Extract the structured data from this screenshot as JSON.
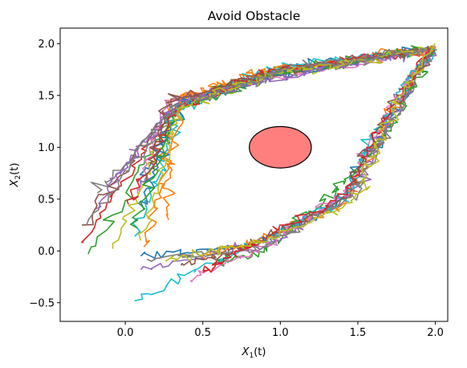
{
  "chart_data": {
    "type": "line",
    "title": "Avoid Obstacle",
    "xlabel_base": "X",
    "xlabel_sub": "1",
    "xlabel_suffix": "(t)",
    "ylabel_base": "X",
    "ylabel_sub": "2",
    "ylabel_suffix": "(t)",
    "xlim": [
      -0.42,
      2.08
    ],
    "ylim": [
      -0.68,
      2.15
    ],
    "xticks": [
      0.0,
      0.5,
      1.0,
      1.5,
      2.0
    ],
    "xtick_labels": [
      "0.0",
      "0.5",
      "1.0",
      "1.5",
      "2.0"
    ],
    "yticks": [
      -0.5,
      0.0,
      0.5,
      1.0,
      1.5,
      2.0
    ],
    "ytick_labels": [
      "−0.5",
      "0.0",
      "0.5",
      "1.0",
      "1.5",
      "2.0"
    ],
    "grid": false,
    "legend": "none",
    "obstacle": {
      "center": [
        1.0,
        1.0
      ],
      "radius_x": 0.2,
      "radius_y": 0.2,
      "fill": "#ff7f7f",
      "edge": "#000000"
    },
    "upper_targets": [
      1.98,
      1.95
    ],
    "series": [
      {
        "color": "#1f77b4",
        "path": "upper",
        "start": [
          0.1,
          0.62
        ]
      },
      {
        "color": "#ff7f0e",
        "path": "upper",
        "start": [
          0.28,
          0.3
        ]
      },
      {
        "color": "#2ca02c",
        "path": "upper",
        "start": [
          -0.24,
          -0.03
        ]
      },
      {
        "color": "#d62728",
        "path": "upper",
        "start": [
          -0.27,
          0.08
        ]
      },
      {
        "color": "#9467bd",
        "path": "upper",
        "start": [
          -0.2,
          0.4
        ]
      },
      {
        "color": "#8c564b",
        "path": "upper",
        "start": [
          -0.28,
          0.25
        ]
      },
      {
        "color": "#e377c2",
        "path": "upper",
        "start": [
          0.08,
          0.55
        ]
      },
      {
        "color": "#7f7f7f",
        "path": "upper",
        "start": [
          -0.25,
          0.25
        ]
      },
      {
        "color": "#bcbd22",
        "path": "upper",
        "start": [
          -0.08,
          0.02
        ]
      },
      {
        "color": "#17becf",
        "path": "upper",
        "start": [
          0.06,
          0.14
        ]
      },
      {
        "color": "#1f77b4",
        "path": "upper",
        "start": [
          0.12,
          0.4
        ]
      },
      {
        "color": "#ff7f0e",
        "path": "upper",
        "start": [
          0.12,
          0.04
        ]
      },
      {
        "color": "#2ca02c",
        "path": "upper",
        "start": [
          0.08,
          0.22
        ]
      },
      {
        "color": "#d62728",
        "path": "upper",
        "start": [
          0.02,
          0.45
        ]
      },
      {
        "color": "#9467bd",
        "path": "upper",
        "start": [
          -0.12,
          0.62
        ]
      },
      {
        "color": "#8c564b",
        "path": "upper",
        "start": [
          0.14,
          0.68
        ]
      },
      {
        "color": "#bcbd22",
        "path": "upper",
        "start": [
          0.1,
          0.1
        ]
      },
      {
        "color": "#7f7f7f",
        "path": "upper",
        "start": [
          -0.18,
          0.56
        ]
      },
      {
        "color": "#1f77b4",
        "path": "lower",
        "start": [
          0.1,
          -0.05
        ]
      },
      {
        "color": "#ff7f0e",
        "path": "lower",
        "start": [
          0.48,
          -0.05
        ]
      },
      {
        "color": "#2ca02c",
        "path": "lower",
        "start": [
          0.6,
          -0.12
        ]
      },
      {
        "color": "#9467bd",
        "path": "lower",
        "start": [
          0.1,
          -0.18
        ]
      },
      {
        "color": "#e377c2",
        "path": "lower",
        "start": [
          0.42,
          -0.28
        ]
      },
      {
        "color": "#17becf",
        "path": "lower",
        "start": [
          0.06,
          -0.48
        ]
      },
      {
        "color": "#8c564b",
        "path": "lower",
        "start": [
          0.36,
          -0.14
        ]
      },
      {
        "color": "#7f7f7f",
        "path": "lower",
        "start": [
          0.14,
          -0.08
        ]
      },
      {
        "color": "#d62728",
        "path": "lower",
        "start": [
          0.5,
          -0.2
        ]
      },
      {
        "color": "#bcbd22",
        "path": "lower",
        "start": [
          0.26,
          -0.1
        ]
      }
    ]
  }
}
